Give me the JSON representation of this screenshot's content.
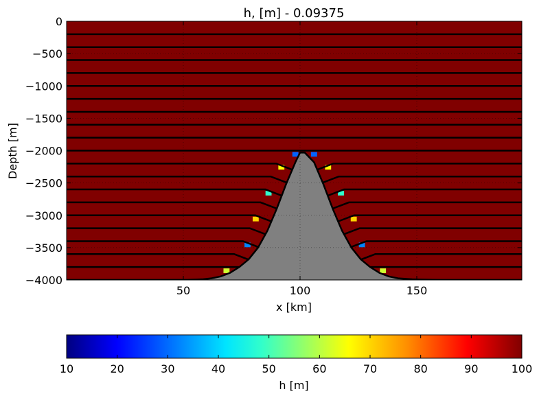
{
  "chart_data": [
    {
      "type": "heatmap",
      "title": "h, [m] - 0.09375",
      "xlabel": "x [km]",
      "ylabel": "Depth [m]",
      "xlim": [
        0,
        195
      ],
      "ylim": [
        -4000,
        0
      ],
      "xticks": [
        50,
        100,
        150
      ],
      "yticks": [
        0,
        -500,
        -1000,
        -1500,
        -2000,
        -2500,
        -3000,
        -3500,
        -4000
      ],
      "grid": true,
      "background_value": 100,
      "layer_interfaces": [
        -200,
        -400,
        -600,
        -800,
        -1000,
        -1200,
        -1400,
        -1600,
        -1800,
        -2000,
        -2200,
        -2400,
        -2600,
        -2800,
        -3000,
        -3200,
        -3400,
        -3600,
        -3800,
        -4000
      ],
      "bathymetry": {
        "x": [
          0,
          40,
          52,
          58,
          62,
          66,
          70,
          74,
          78,
          82,
          86,
          90,
          94,
          98,
          100,
          102,
          106,
          110,
          114,
          118,
          122,
          126,
          130,
          134,
          138,
          142,
          148,
          160,
          195
        ],
        "depth": [
          -4000,
          -4000,
          -3998,
          -3990,
          -3975,
          -3945,
          -3890,
          -3800,
          -3680,
          -3500,
          -3240,
          -2900,
          -2520,
          -2180,
          -2030,
          -2030,
          -2180,
          -2520,
          -2900,
          -3240,
          -3500,
          -3680,
          -3800,
          -3890,
          -3945,
          -3975,
          -3990,
          -4000,
          -4000
        ]
      },
      "thin_cells": [
        {
          "x": 68.5,
          "depth": -3800,
          "value": 62
        },
        {
          "x": 77.5,
          "depth": -3400,
          "value": 33
        },
        {
          "x": 81,
          "depth": -3000,
          "value": 70
        },
        {
          "x": 86.5,
          "depth": -2600,
          "value": 48
        },
        {
          "x": 92,
          "depth": -2200,
          "value": 66
        },
        {
          "x": 98,
          "depth": -2000,
          "value": 30
        },
        {
          "x": 106,
          "depth": -2000,
          "value": 30
        },
        {
          "x": 112,
          "depth": -2200,
          "value": 66
        },
        {
          "x": 117.5,
          "depth": -2600,
          "value": 48
        },
        {
          "x": 123,
          "depth": -3000,
          "value": 70
        },
        {
          "x": 126.5,
          "depth": -3400,
          "value": 33
        },
        {
          "x": 135.5,
          "depth": -3800,
          "value": 62
        }
      ]
    },
    {
      "type": "colorbar",
      "label": "h [m]",
      "range": [
        10,
        100
      ],
      "ticks": [
        10,
        20,
        30,
        40,
        50,
        60,
        70,
        80,
        90,
        100
      ],
      "colormap": "jet"
    }
  ]
}
